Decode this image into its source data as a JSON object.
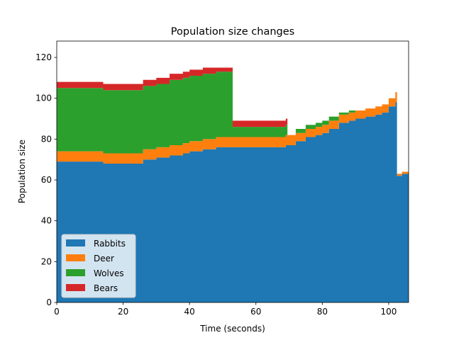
{
  "chart_data": {
    "type": "area",
    "stacked": true,
    "title": "Population size changes",
    "xlabel": "Time (seconds)",
    "ylabel": "Population size",
    "xlim": [
      0,
      106
    ],
    "ylim": [
      0,
      128
    ],
    "xticks": [
      0,
      20,
      40,
      60,
      80,
      100
    ],
    "yticks": [
      0,
      20,
      40,
      60,
      80,
      100,
      120
    ],
    "legend_placement": "lower-left",
    "grid": false,
    "x": [
      0,
      14,
      26,
      30,
      34,
      38,
      40,
      44,
      48,
      52,
      53,
      66,
      69,
      69.5,
      72,
      75,
      78,
      80,
      82,
      85,
      88,
      90,
      93,
      96,
      98,
      100,
      102,
      102.5,
      104,
      106
    ],
    "series": [
      {
        "name": "Rabbits",
        "color": "#1f77b4",
        "values": [
          69,
          68,
          70,
          71,
          72,
          73,
          74,
          75,
          76,
          76,
          76,
          76,
          77,
          77,
          79,
          81,
          82,
          83,
          85,
          88,
          89,
          90,
          91,
          92,
          93,
          96,
          98,
          62,
          63,
          63
        ]
      },
      {
        "name": "Deer",
        "color": "#ff7f0e",
        "values": [
          5,
          5,
          5,
          5,
          5,
          5,
          5,
          5,
          5,
          5,
          5,
          5,
          5,
          5,
          4,
          4,
          4,
          4,
          4,
          4,
          4,
          4,
          4,
          4,
          4,
          4,
          5,
          1,
          1,
          1
        ]
      },
      {
        "name": "Wolves",
        "color": "#2ca02c",
        "values": [
          31,
          31,
          31,
          31,
          32,
          32,
          32,
          32,
          32,
          32,
          5,
          5,
          5,
          0,
          2,
          2,
          2,
          2,
          2,
          1,
          1,
          0,
          0,
          0,
          0,
          0,
          0,
          0,
          0,
          0
        ]
      },
      {
        "name": "Bears",
        "color": "#d62728",
        "values": [
          3,
          3,
          3,
          3,
          3,
          3,
          3,
          3,
          2,
          2,
          3,
          3,
          3,
          0,
          0,
          0,
          0,
          0,
          0,
          0,
          0,
          0,
          0,
          0,
          0,
          0,
          0,
          0,
          0,
          0
        ]
      }
    ]
  }
}
